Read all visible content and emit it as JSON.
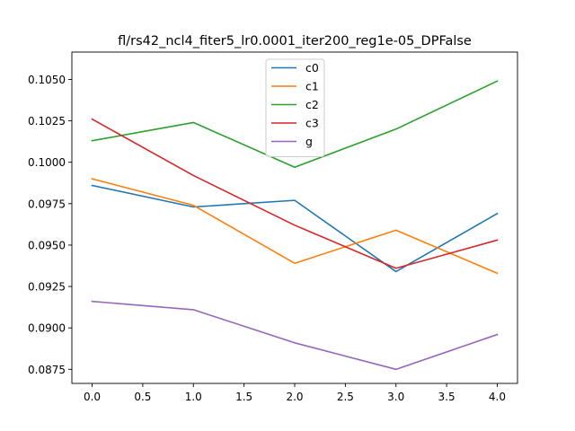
{
  "chart_data": {
    "type": "line",
    "title": "fl/rs42_ncl4_fiter5_lr0.0001_iter200_reg1e-05_DPFalse",
    "xlabel": "",
    "ylabel": "",
    "x": [
      0,
      1,
      2,
      3,
      4
    ],
    "xlim": [
      -0.2,
      4.2
    ],
    "ylim": [
      0.08665,
      0.10665
    ],
    "x_ticks": [
      0.0,
      0.5,
      1.0,
      1.5,
      2.0,
      2.5,
      3.0,
      3.5,
      4.0
    ],
    "x_tick_labels": [
      "0.0",
      "0.5",
      "1.0",
      "1.5",
      "2.0",
      "2.5",
      "3.0",
      "3.5",
      "4.0"
    ],
    "y_ticks": [
      0.0875,
      0.09,
      0.0925,
      0.095,
      0.0975,
      0.1,
      0.1025,
      0.105
    ],
    "y_tick_labels": [
      "0.0875",
      "0.0900",
      "0.0925",
      "0.0950",
      "0.0975",
      "0.1000",
      "0.1025",
      "0.1050"
    ],
    "grid": false,
    "legend_position": "top-center",
    "series": [
      {
        "name": "c0",
        "color": "#1f77b4",
        "values": [
          0.0986,
          0.0973,
          0.0977,
          0.0934,
          0.0969
        ]
      },
      {
        "name": "c1",
        "color": "#ff7f0e",
        "values": [
          0.099,
          0.0974,
          0.0939,
          0.0959,
          0.0933
        ]
      },
      {
        "name": "c2",
        "color": "#2ca02c",
        "values": [
          0.1013,
          0.1024,
          0.0997,
          0.102,
          0.1049
        ]
      },
      {
        "name": "c3",
        "color": "#d62728",
        "values": [
          0.1026,
          0.0992,
          0.0962,
          0.0936,
          0.0953
        ]
      },
      {
        "name": "g",
        "color": "#9467bd",
        "values": [
          0.0916,
          0.0911,
          0.0891,
          0.0875,
          0.0896
        ]
      }
    ]
  }
}
